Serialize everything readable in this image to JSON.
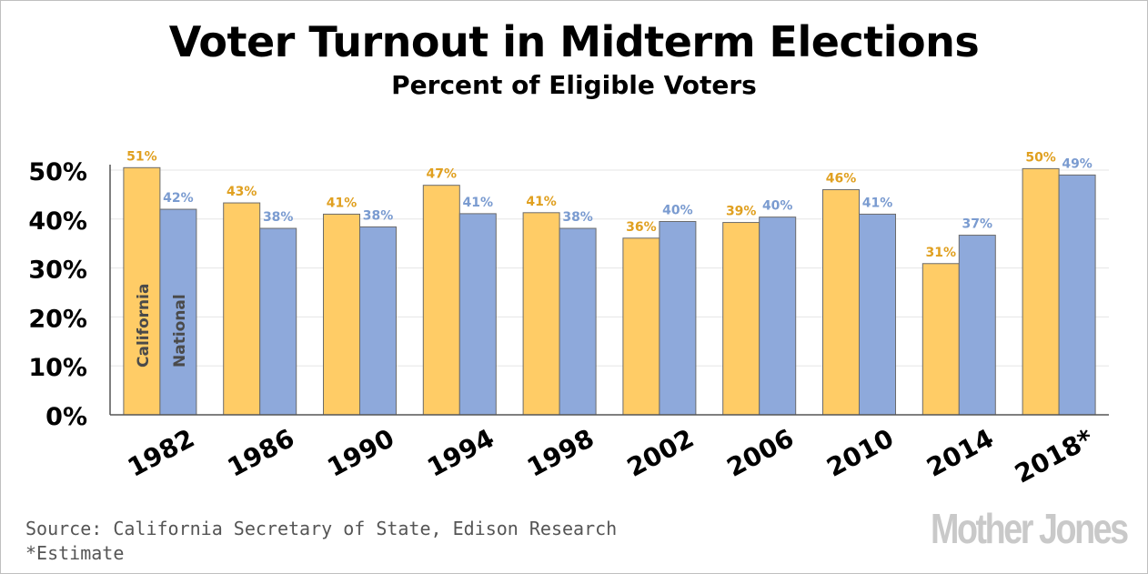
{
  "chart_data": {
    "type": "bar",
    "title": "Voter Turnout in Midterm Elections",
    "subtitle": "Percent of Eligible Voters",
    "categories": [
      "1982",
      "1986",
      "1990",
      "1994",
      "1998",
      "2002",
      "2006",
      "2010",
      "2014",
      "2018*"
    ],
    "series": [
      {
        "name": "California",
        "color": "#ffcc66",
        "label_color": "#e0a020",
        "values": [
          50.5,
          43.3,
          41.0,
          46.9,
          41.3,
          36.1,
          39.3,
          46.0,
          30.9,
          50.3
        ],
        "labels": [
          "51%",
          "43%",
          "41%",
          "47%",
          "41%",
          "36%",
          "39%",
          "46%",
          "31%",
          "50%"
        ]
      },
      {
        "name": "National",
        "color": "#8ea9db",
        "label_color": "#7a9bd0",
        "values": [
          42.0,
          38.1,
          38.4,
          41.1,
          38.1,
          39.5,
          40.4,
          41.0,
          36.7,
          49.0
        ],
        "labels": [
          "42%",
          "38%",
          "38%",
          "41%",
          "38%",
          "40%",
          "40%",
          "41%",
          "37%",
          "49%"
        ]
      }
    ],
    "ylim": [
      0,
      50
    ],
    "yticks": [
      0,
      10,
      20,
      30,
      40,
      50
    ],
    "ytick_labels": [
      "0%",
      "10%",
      "20%",
      "30%",
      "40%",
      "50%"
    ],
    "grid": true,
    "xlabel": "",
    "ylabel": ""
  },
  "source": {
    "line1": "Source: California Secretary of State, Edison Research",
    "line2": "*Estimate"
  },
  "logo": {
    "text": "Mother Jones",
    "color": "#c9c9c9"
  }
}
